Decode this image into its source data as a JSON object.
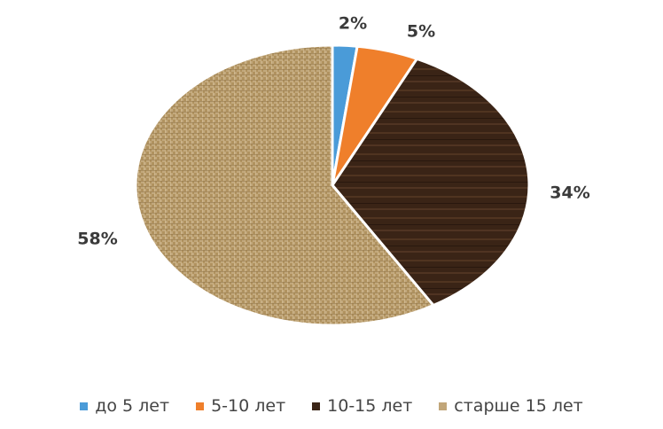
{
  "chart_data": {
    "type": "pie",
    "title": "",
    "categories": [
      "до 5 лет",
      "5-10 лет",
      "10-15 лет",
      "старше 15 лет"
    ],
    "values": [
      2,
      5,
      34,
      58
    ],
    "labels": [
      "2%",
      "5%",
      "34%",
      "58%"
    ],
    "colors": [
      "#4a9bd8",
      "#ef7f2b",
      "#3b2517",
      "#c1a679"
    ],
    "legend_position": "bottom",
    "start_angle": "12 o'clock",
    "direction": "clockwise"
  }
}
